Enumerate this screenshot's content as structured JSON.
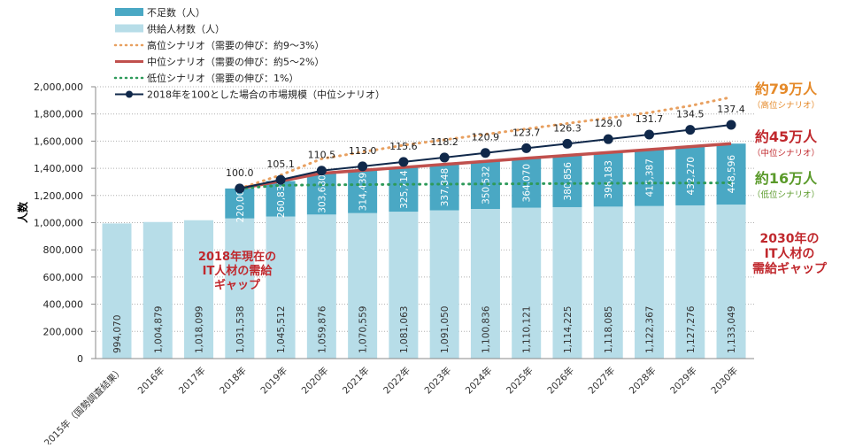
{
  "chart_data": {
    "type": "bar",
    "stacked": true,
    "ylabel": "人数",
    "ylim": [
      0,
      2000000
    ],
    "yticks": [
      "0",
      "200,000",
      "400,000",
      "600,000",
      "800,000",
      "1,000,000",
      "1,200,000",
      "1,400,000",
      "1,600,000",
      "1,800,000",
      "2,000,000"
    ],
    "ytick_values": [
      0,
      200000,
      400000,
      600000,
      800000,
      1000000,
      1200000,
      1400000,
      1600000,
      1800000,
      2000000
    ],
    "grid": "horizontal dotted",
    "legend_position": "top-left",
    "categories": [
      "2015年（国勢調査結果）",
      "2016年",
      "2017年",
      "2018年",
      "2019年",
      "2020年",
      "2021年",
      "2022年",
      "2023年",
      "2024年",
      "2025年",
      "2026年",
      "2027年",
      "2028年",
      "2029年",
      "2030年"
    ],
    "series": [
      {
        "name": "供給人材数（人）",
        "kind": "bar",
        "color": "#b7dde8",
        "values": [
          994070,
          1004879,
          1018099,
          1031538,
          1045512,
          1059876,
          1070559,
          1081063,
          1091050,
          1100836,
          1110121,
          1114225,
          1118085,
          1122367,
          1127276,
          1133049
        ],
        "labels": [
          "994,070",
          "1,004,879",
          "1,018,099",
          "1,031,538",
          "1,045,512",
          "1,059,876",
          "1,070,559",
          "1,081,063",
          "1,091,050",
          "1,100,836",
          "1,110,121",
          "1,114,225",
          "1,118,085",
          "1,122,367",
          "1,127,276",
          "1,133,049"
        ]
      },
      {
        "name": "不足数（人）",
        "kind": "bar",
        "color": "#4aa8c4",
        "values": [
          null,
          null,
          null,
          220000,
          260835,
          303680,
          314439,
          325714,
          337848,
          350532,
          364070,
          380856,
          398183,
          415387,
          432270,
          448596
        ],
        "labels": [
          "",
          "",
          "",
          "220,000",
          "260,835",
          "303,680",
          "314,439",
          "325,714",
          "337,848",
          "350,532",
          "364,070",
          "380,856",
          "398,183",
          "415,387",
          "432,270",
          "448,596"
        ]
      },
      {
        "name": "高位シナリオ（需要の伸び：約9～3%）",
        "kind": "dotted-line",
        "color": "#e8a060",
        "values": [
          null,
          null,
          null,
          1251538,
          1350000,
          1470000,
          1520000,
          1570000,
          1610000,
          1650000,
          1690000,
          1730000,
          1770000,
          1810000,
          1860000,
          1923049
        ]
      },
      {
        "name": "中位シナリオ（需要の伸び：約5～2%）",
        "kind": "line",
        "color": "#c0504d",
        "values": [
          null,
          null,
          null,
          1251538,
          1306347,
          1363556,
          1384998,
          1406777,
          1428898,
          1451368,
          1474191,
          1495081,
          1516268,
          1537754,
          1559546,
          1581645
        ]
      },
      {
        "name": "低位シナリオ（需要の伸び：1%）",
        "kind": "dotted-line",
        "color": "#2e9a5a",
        "values": [
          null,
          null,
          null,
          1251538,
          1275000,
          1278000,
          1280000,
          1282000,
          1283500,
          1285000,
          1286500,
          1288000,
          1289500,
          1291000,
          1292000,
          1293049
        ]
      },
      {
        "name": "2018年を100とした場合の市場規模（中位シナリオ）",
        "kind": "line-marker",
        "color": "#10284a",
        "values": [
          null,
          null,
          null,
          100.0,
          105.1,
          110.5,
          113.0,
          115.6,
          118.2,
          120.9,
          123.7,
          126.3,
          129.0,
          131.7,
          134.5,
          137.4
        ],
        "labels": [
          "",
          "",
          "",
          "100.0",
          "105.1",
          "110.5",
          "113.0",
          "115.6",
          "118.2",
          "120.9",
          "123.7",
          "126.3",
          "129.0",
          "131.7",
          "134.5",
          "137.4"
        ]
      }
    ],
    "annotations": {
      "high": {
        "value": "約79万人",
        "sub": "（高位シナリオ）",
        "color": "#e58a2a"
      },
      "mid": {
        "value": "約45万人",
        "sub": "（中位シナリオ）",
        "color": "#c0282d"
      },
      "low": {
        "value": "約16万人",
        "sub": "（低位シナリオ）",
        "color": "#5a9a2a"
      },
      "gap2030": [
        "2030年の",
        "IT人材の",
        "需給ギャップ"
      ],
      "gap2018": [
        "2018年現在の",
        "IT人材の需給",
        "ギャップ"
      ],
      "gap_color": "#c0282d"
    }
  }
}
